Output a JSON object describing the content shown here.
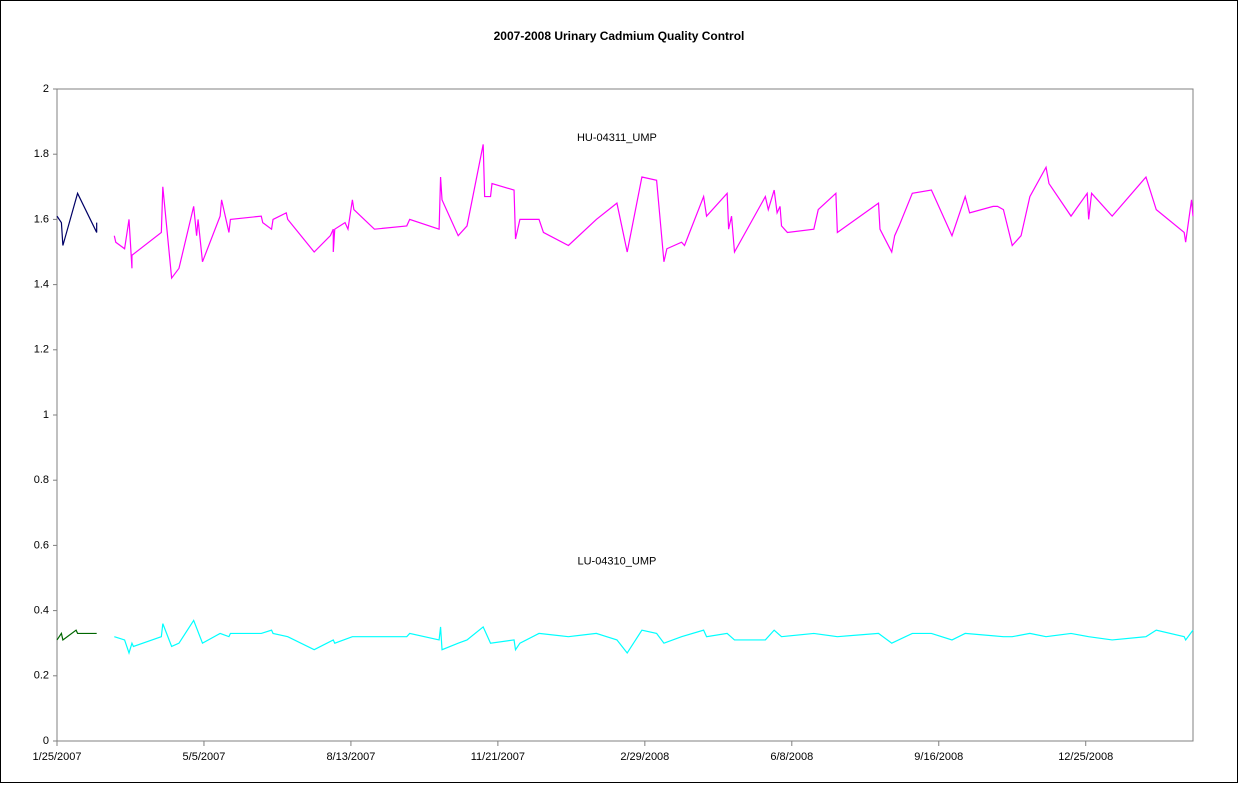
{
  "chart_data": {
    "type": "line",
    "title": "2007-2008 Urinary Cadmium Quality Control",
    "xlim": [
      "2007-01-25",
      "2009-03-08"
    ],
    "xticks": [
      {
        "value": "2007-01-25",
        "label": "1/25/2007"
      },
      {
        "value": "2007-05-05",
        "label": "5/5/2007"
      },
      {
        "value": "2007-08-13",
        "label": "8/13/2007"
      },
      {
        "value": "2007-11-21",
        "label": "11/21/2007"
      },
      {
        "value": "2008-02-29",
        "label": "2/29/2008"
      },
      {
        "value": "2008-06-08",
        "label": "6/8/2008"
      },
      {
        "value": "2008-09-16",
        "label": "9/16/2008"
      },
      {
        "value": "2008-12-25",
        "label": "12/25/2008"
      }
    ],
    "ylim": [
      0,
      2
    ],
    "yticks": [
      0,
      0.2,
      0.4,
      0.6,
      0.8,
      1,
      1.2,
      1.4,
      1.6,
      1.8,
      2
    ],
    "grid": false,
    "annotations": [
      {
        "text": "HU-04311_UMP",
        "x": "2008-02-10",
        "y": 1.85
      },
      {
        "text": "LU-04310_UMP",
        "x": "2008-02-10",
        "y": 0.55
      }
    ],
    "series": [
      {
        "color": "#000066",
        "x": [
          "2007-01-25",
          "2007-01-28",
          "2007-01-29",
          "2007-02-08",
          "2007-02-21",
          "2007-02-21"
        ],
        "values": [
          1.61,
          1.59,
          1.52,
          1.68,
          1.56,
          1.59
        ]
      },
      {
        "color": "#ff00ff",
        "x": [
          "2007-03-05",
          "2007-03-06",
          "2007-03-12",
          "2007-03-15",
          "2007-03-17",
          "2007-03-17",
          "2007-04-06",
          "2007-04-07",
          "2007-04-13",
          "2007-04-18",
          "2007-04-28",
          "2007-04-30",
          "2007-05-01",
          "2007-05-04",
          "2007-05-16",
          "2007-05-17",
          "2007-05-22",
          "2007-05-23",
          "2007-06-13",
          "2007-06-14",
          "2007-06-20",
          "2007-06-21",
          "2007-06-30",
          "2007-07-01",
          "2007-07-19",
          "2007-07-30",
          "2007-08-01",
          "2007-08-01",
          "2007-08-02",
          "2007-08-09",
          "2007-08-11",
          "2007-08-14",
          "2007-08-15",
          "2007-08-29",
          "2007-09-20",
          "2007-09-22",
          "2007-10-12",
          "2007-10-13",
          "2007-10-14",
          "2007-10-25",
          "2007-10-31",
          "2007-11-11",
          "2007-11-12",
          "2007-11-16",
          "2007-11-17",
          "2007-12-02",
          "2007-12-03",
          "2007-12-06",
          "2007-12-19",
          "2007-12-22",
          "2008-01-08",
          "2008-01-27",
          "2008-02-10",
          "2008-02-17",
          "2008-02-27",
          "2008-03-08",
          "2008-03-10",
          "2008-03-13",
          "2008-03-15",
          "2008-03-25",
          "2008-03-27",
          "2008-04-09",
          "2008-04-11",
          "2008-04-25",
          "2008-04-26",
          "2008-04-28",
          "2008-04-30",
          "2008-05-21",
          "2008-05-23",
          "2008-05-27",
          "2008-05-29",
          "2008-05-31",
          "2008-06-01",
          "2008-06-05",
          "2008-06-23",
          "2008-06-26",
          "2008-07-08",
          "2008-07-09",
          "2008-08-06",
          "2008-08-07",
          "2008-08-15",
          "2008-08-17",
          "2008-08-20",
          "2008-08-29",
          "2008-09-11",
          "2008-09-25",
          "2008-10-04",
          "2008-10-07",
          "2008-10-23",
          "2008-10-26",
          "2008-10-30",
          "2008-11-05",
          "2008-11-11",
          "2008-11-17",
          "2008-11-28",
          "2008-11-30",
          "2008-12-15",
          "2008-12-26",
          "2008-12-27",
          "2008-12-29",
          "2009-01-12",
          "2009-02-04",
          "2009-02-11",
          "2009-03-02",
          "2009-03-03",
          "2009-03-07",
          "2009-03-08"
        ],
        "values": [
          1.55,
          1.53,
          1.51,
          1.6,
          1.45,
          1.49,
          1.56,
          1.7,
          1.42,
          1.45,
          1.64,
          1.55,
          1.6,
          1.47,
          1.61,
          1.66,
          1.56,
          1.6,
          1.61,
          1.59,
          1.57,
          1.6,
          1.62,
          1.6,
          1.5,
          1.55,
          1.57,
          1.5,
          1.57,
          1.59,
          1.57,
          1.66,
          1.63,
          1.57,
          1.58,
          1.6,
          1.57,
          1.73,
          1.66,
          1.55,
          1.58,
          1.83,
          1.67,
          1.67,
          1.71,
          1.69,
          1.54,
          1.6,
          1.6,
          1.56,
          1.52,
          1.6,
          1.65,
          1.5,
          1.73,
          1.72,
          1.62,
          1.47,
          1.51,
          1.53,
          1.52,
          1.67,
          1.61,
          1.68,
          1.57,
          1.61,
          1.5,
          1.67,
          1.63,
          1.69,
          1.62,
          1.64,
          1.58,
          1.56,
          1.57,
          1.63,
          1.68,
          1.56,
          1.65,
          1.57,
          1.5,
          1.55,
          1.58,
          1.68,
          1.69,
          1.55,
          1.67,
          1.62,
          1.64,
          1.64,
          1.63,
          1.52,
          1.55,
          1.67,
          1.76,
          1.71,
          1.61,
          1.68,
          1.6,
          1.68,
          1.61,
          1.73,
          1.63,
          1.56,
          1.53,
          1.66,
          1.61
        ]
      },
      {
        "color": "#006600",
        "x": [
          "2007-01-25",
          "2007-01-28",
          "2007-01-29",
          "2007-02-07",
          "2007-02-08",
          "2007-02-21"
        ],
        "values": [
          0.31,
          0.33,
          0.31,
          0.34,
          0.33,
          0.33
        ]
      },
      {
        "color": "#00ffff",
        "x": [
          "2007-03-05",
          "2007-03-12",
          "2007-03-15",
          "2007-03-17",
          "2007-03-18",
          "2007-04-06",
          "2007-04-07",
          "2007-04-13",
          "2007-04-18",
          "2007-04-28",
          "2007-05-04",
          "2007-05-16",
          "2007-05-22",
          "2007-05-23",
          "2007-06-13",
          "2007-06-20",
          "2007-06-21",
          "2007-07-01",
          "2007-07-19",
          "2007-08-01",
          "2007-08-02",
          "2007-08-14",
          "2007-09-20",
          "2007-09-22",
          "2007-10-12",
          "2007-10-13",
          "2007-10-14",
          "2007-10-25",
          "2007-10-31",
          "2007-11-11",
          "2007-11-16",
          "2007-12-02",
          "2007-12-03",
          "2007-12-06",
          "2007-12-19",
          "2008-01-08",
          "2008-01-27",
          "2008-02-10",
          "2008-02-17",
          "2008-02-27",
          "2008-03-08",
          "2008-03-13",
          "2008-03-25",
          "2008-04-09",
          "2008-04-11",
          "2008-04-25",
          "2008-04-30",
          "2008-05-21",
          "2008-05-27",
          "2008-06-01",
          "2008-06-23",
          "2008-07-09",
          "2008-08-06",
          "2008-08-15",
          "2008-08-29",
          "2008-09-11",
          "2008-09-25",
          "2008-10-04",
          "2008-10-30",
          "2008-11-05",
          "2008-11-17",
          "2008-11-28",
          "2008-12-15",
          "2008-12-27",
          "2009-01-12",
          "2009-02-04",
          "2009-02-11",
          "2009-03-02",
          "2009-03-03",
          "2009-03-08"
        ],
        "values": [
          0.32,
          0.31,
          0.27,
          0.3,
          0.29,
          0.32,
          0.36,
          0.29,
          0.3,
          0.37,
          0.3,
          0.33,
          0.32,
          0.33,
          0.33,
          0.34,
          0.33,
          0.32,
          0.28,
          0.31,
          0.3,
          0.32,
          0.32,
          0.33,
          0.31,
          0.35,
          0.28,
          0.3,
          0.31,
          0.35,
          0.3,
          0.31,
          0.28,
          0.3,
          0.33,
          0.32,
          0.33,
          0.31,
          0.27,
          0.34,
          0.33,
          0.3,
          0.32,
          0.34,
          0.32,
          0.33,
          0.31,
          0.31,
          0.34,
          0.32,
          0.33,
          0.32,
          0.33,
          0.3,
          0.33,
          0.33,
          0.31,
          0.33,
          0.32,
          0.32,
          0.33,
          0.32,
          0.33,
          0.32,
          0.31,
          0.32,
          0.34,
          0.32,
          0.31,
          0.34
        ]
      }
    ]
  }
}
